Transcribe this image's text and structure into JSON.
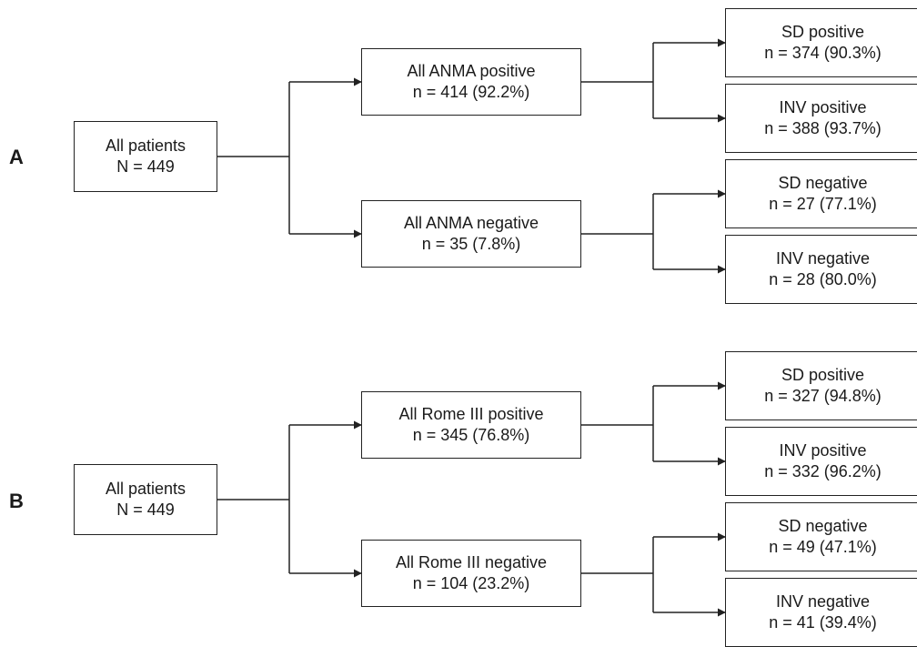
{
  "panels": [
    {
      "label": "A",
      "root": {
        "title": "All patients",
        "count": "N = 449"
      },
      "branches": [
        {
          "title": "All ANMA positive",
          "count": "n = 414 (92.2%)",
          "leaves": [
            {
              "title": "SD positive",
              "count": "n = 374 (90.3%)"
            },
            {
              "title": "INV positive",
              "count": "n = 388 (93.7%)"
            }
          ]
        },
        {
          "title": "All ANMA negative",
          "count": "n = 35 (7.8%)",
          "leaves": [
            {
              "title": "SD negative",
              "count": "n = 27 (77.1%)"
            },
            {
              "title": "INV negative",
              "count": "n = 28 (80.0%)"
            }
          ]
        }
      ]
    },
    {
      "label": "B",
      "root": {
        "title": "All patients",
        "count": "N = 449"
      },
      "branches": [
        {
          "title": "All Rome III positive",
          "count": "n = 345 (76.8%)",
          "leaves": [
            {
              "title": "SD positive",
              "count": "n = 327 (94.8%)"
            },
            {
              "title": "INV positive",
              "count": "n = 332 (96.2%)"
            }
          ]
        },
        {
          "title": "All Rome III negative",
          "count": "n = 104 (23.2%)",
          "leaves": [
            {
              "title": "SD negative",
              "count": "n = 49 (47.1%)"
            },
            {
              "title": "INV negative",
              "count": "n = 41 (39.4%)"
            }
          ]
        }
      ]
    }
  ]
}
